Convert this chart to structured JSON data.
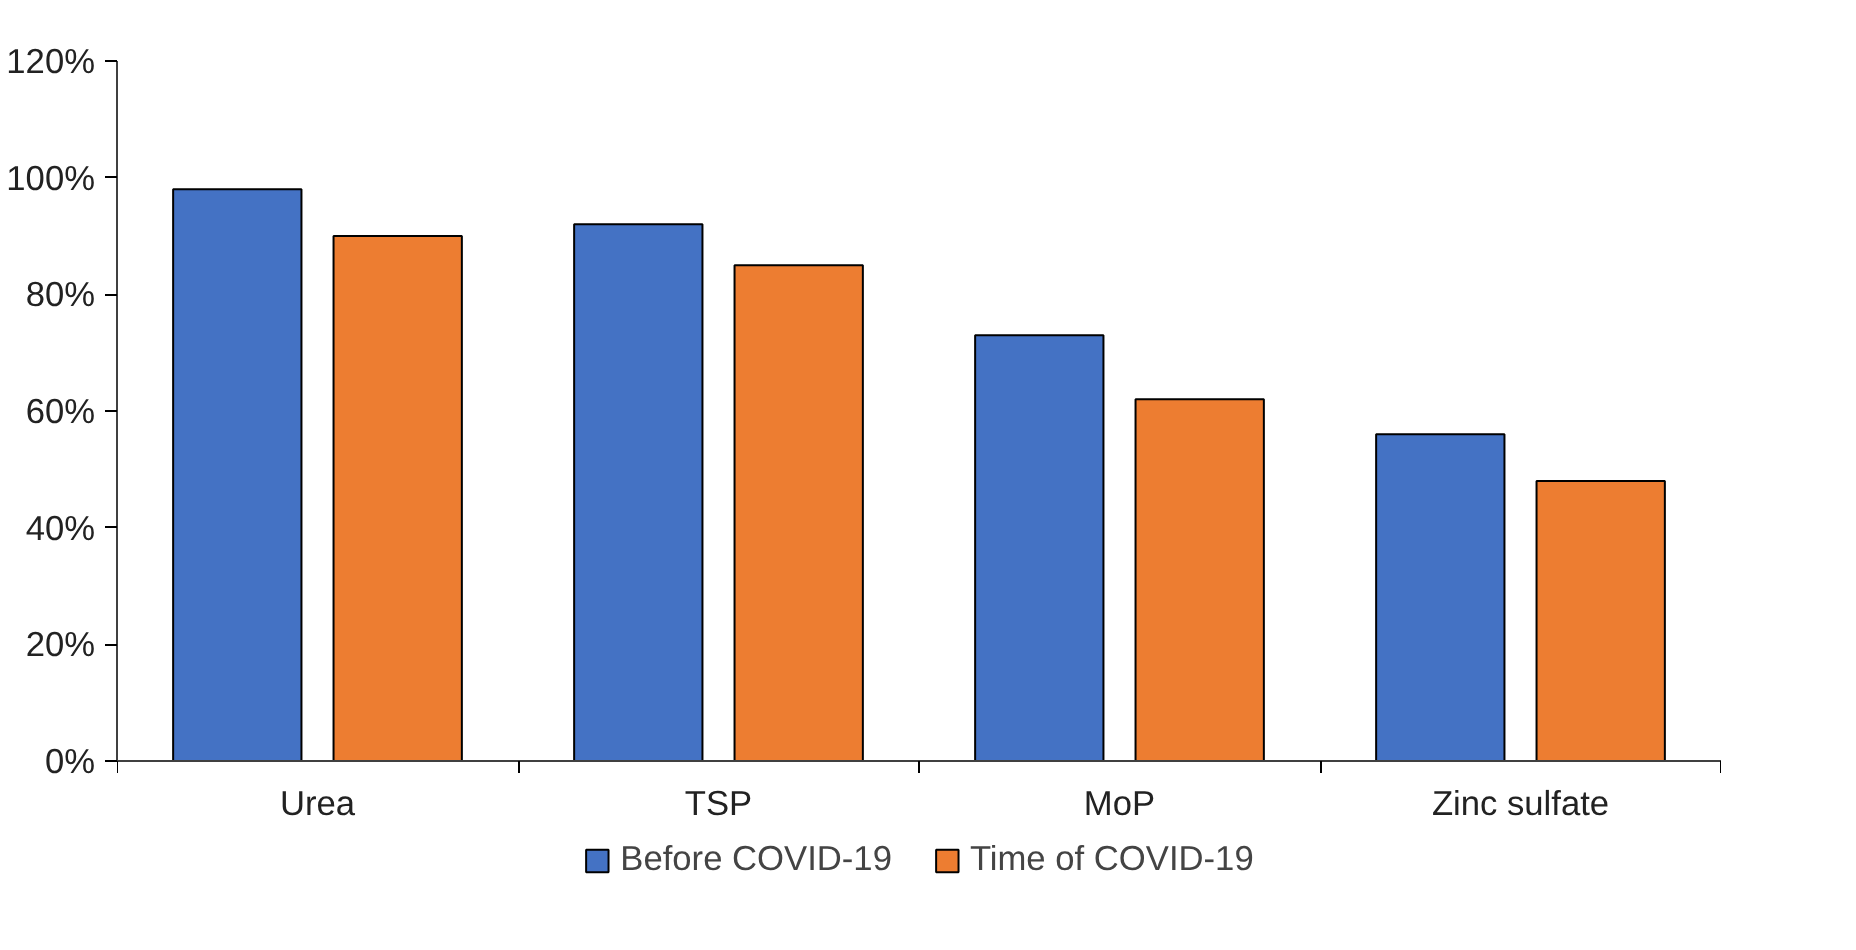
{
  "chart_data": {
    "type": "bar",
    "categories": [
      "Urea",
      "TSP",
      "MoP",
      "Zinc sulfate"
    ],
    "series": [
      {
        "name": "Before COVID-19",
        "color": "#4472c4",
        "values": [
          98,
          92,
          73,
          56
        ]
      },
      {
        "name": "Time of COVID-19",
        "color": "#ed7d31",
        "values": [
          90,
          85,
          62,
          48
        ]
      }
    ],
    "ylim": [
      0,
      120
    ],
    "yticks": [
      {
        "value": 0,
        "label": "0%"
      },
      {
        "value": 20,
        "label": "20%"
      },
      {
        "value": 40,
        "label": "40%"
      },
      {
        "value": 60,
        "label": "60%"
      },
      {
        "value": 80,
        "label": "80%"
      },
      {
        "value": 100,
        "label": "100%"
      },
      {
        "value": 120,
        "label": "120%"
      }
    ],
    "grid": false,
    "legend": "bottom"
  }
}
